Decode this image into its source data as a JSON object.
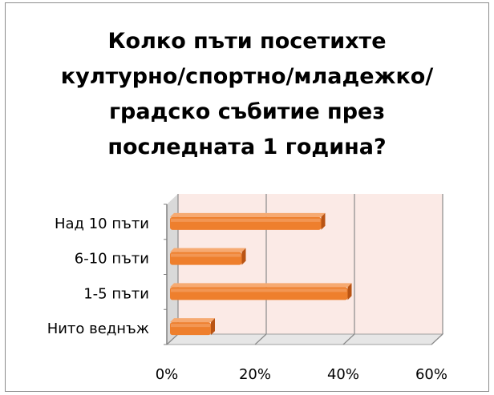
{
  "chart_data": {
    "type": "bar",
    "orientation": "horizontal",
    "title_lines": [
      "Колко пъти посетихте",
      "културно/спортно/младежко/",
      "градско събитие през",
      "последната 1 година?"
    ],
    "categories": [
      "Над 10 пъти",
      "6-10 пъти",
      "1-5 пъти",
      "Нито веднъж"
    ],
    "values": [
      0.35,
      0.17,
      0.41,
      0.1
    ],
    "xlim": [
      0,
      0.6
    ],
    "x_ticks": [
      0,
      0.2,
      0.4,
      0.6
    ],
    "x_tick_labels": [
      "0%",
      "20%",
      "40%",
      "60%"
    ],
    "grid": true,
    "legend": "none",
    "style": "3d",
    "colors": {
      "bar": "#ee7f2d",
      "bar_dark": "#b95414",
      "bar_light": "#f6aa72",
      "plot_wall": "#fbeae6",
      "gridline": "#8a8a8a"
    }
  }
}
